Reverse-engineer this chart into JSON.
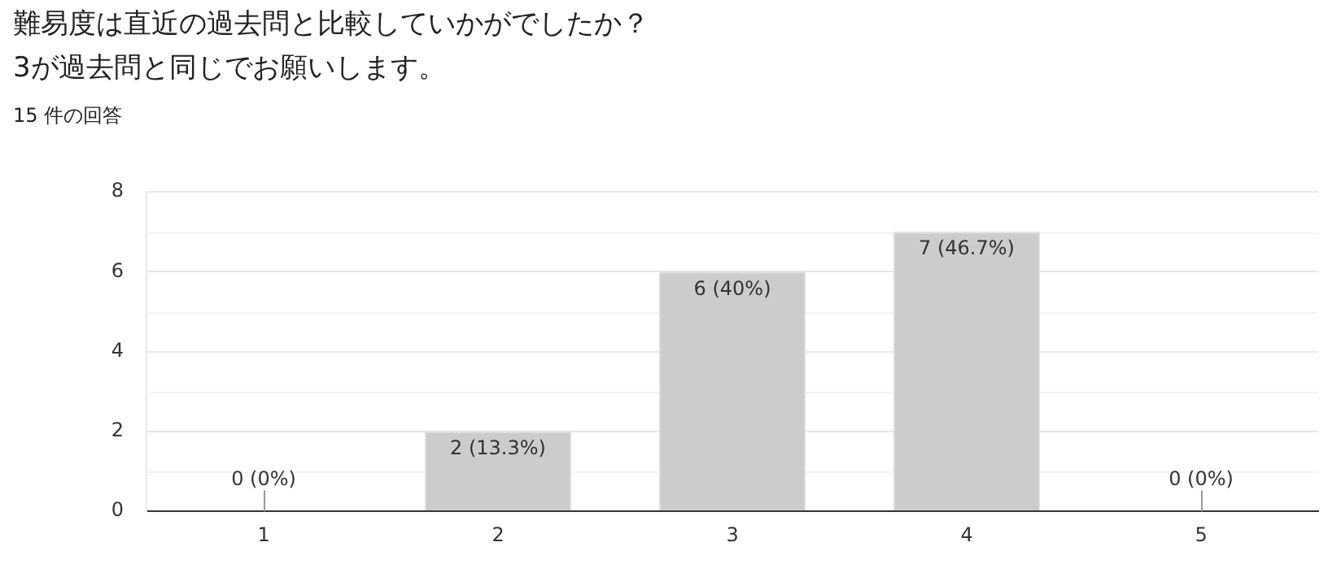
{
  "chart_data": {
    "type": "bar",
    "title": "難易度は直近の過去問と比較していかがでしたか？\n3が過去問と同じでお願いします。",
    "subtitle": "15 件の回答",
    "categories": [
      "1",
      "2",
      "3",
      "4",
      "5"
    ],
    "values": [
      0,
      2,
      6,
      7,
      0
    ],
    "value_labels": [
      "0 (0%)",
      "2 (13.3%)",
      "6 (40%)",
      "7 (46.7%)",
      "0 (0%)"
    ],
    "color": "#cccccc",
    "ylim": [
      0,
      8
    ],
    "yticks": [
      0,
      2,
      4,
      6,
      8
    ],
    "grid": "y",
    "legend": false
  }
}
